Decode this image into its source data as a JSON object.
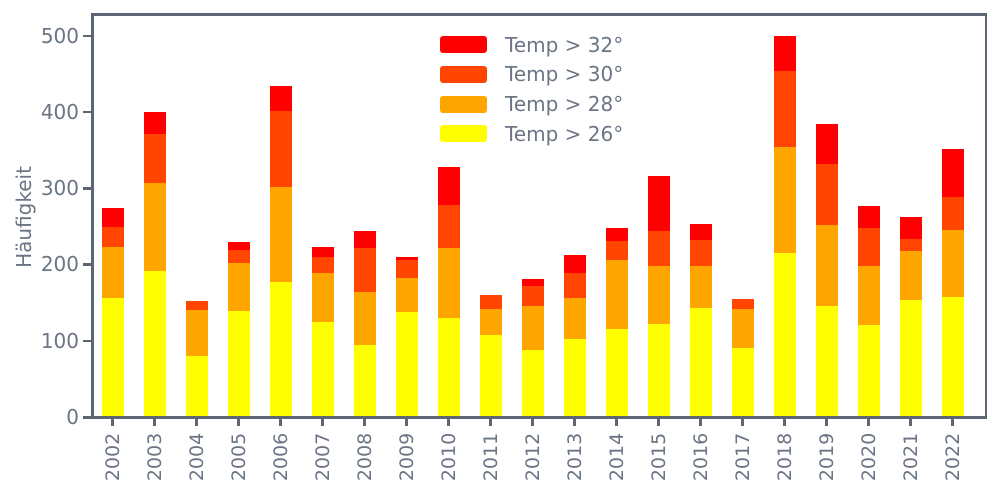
{
  "figure": {
    "background": "#ffffff",
    "axis_color": "#5d6774",
    "text_color": "#6b7585"
  },
  "chart_data": {
    "type": "bar",
    "stacked": true,
    "title": "",
    "xlabel": "",
    "ylabel": "Häufigkeit",
    "categories": [
      "2002",
      "2003",
      "2004",
      "2005",
      "2006",
      "2007",
      "2008",
      "2009",
      "2010",
      "2011",
      "2012",
      "2013",
      "2014",
      "2015",
      "2016",
      "2017",
      "2018",
      "2019",
      "2020",
      "2021",
      "2022"
    ],
    "series": [
      {
        "name": "Temp > 32°",
        "color": "#ff0000",
        "values": [
          24,
          29,
          0,
          10,
          32,
          14,
          23,
          4,
          49,
          0,
          9,
          24,
          16,
          73,
          20,
          0,
          46,
          53,
          28,
          29,
          63
        ]
      },
      {
        "name": "Temp > 30°",
        "color": "#ff4500",
        "values": [
          27,
          63,
          12,
          17,
          100,
          20,
          58,
          24,
          57,
          19,
          27,
          33,
          26,
          46,
          35,
          13,
          100,
          80,
          50,
          16,
          43
        ]
      },
      {
        "name": "Temp > 28°",
        "color": "#ffa500",
        "values": [
          67,
          116,
          61,
          64,
          125,
          65,
          69,
          45,
          92,
          34,
          58,
          53,
          90,
          75,
          54,
          51,
          138,
          106,
          78,
          64,
          88
        ]
      },
      {
        "name": "Temp > 26°",
        "color": "#ffff00",
        "values": [
          154,
          190,
          78,
          137,
          175,
          123,
          93,
          136,
          128,
          106,
          86,
          101,
          114,
          121,
          142,
          89,
          214,
          144,
          119,
          152,
          156
        ]
      }
    ],
    "stack_order_bottom_to_top": [
      "Temp > 26°",
      "Temp > 28°",
      "Temp > 30°",
      "Temp > 32°"
    ],
    "totals": [
      272,
      398,
      151,
      228,
      432,
      222,
      243,
      209,
      326,
      159,
      180,
      211,
      246,
      315,
      251,
      153,
      498,
      383,
      275,
      261,
      350
    ],
    "yticks": [
      0,
      100,
      200,
      300,
      400,
      500
    ],
    "ylim": [
      0,
      524
    ],
    "grid": false,
    "legend_position": "upper-center-right"
  }
}
